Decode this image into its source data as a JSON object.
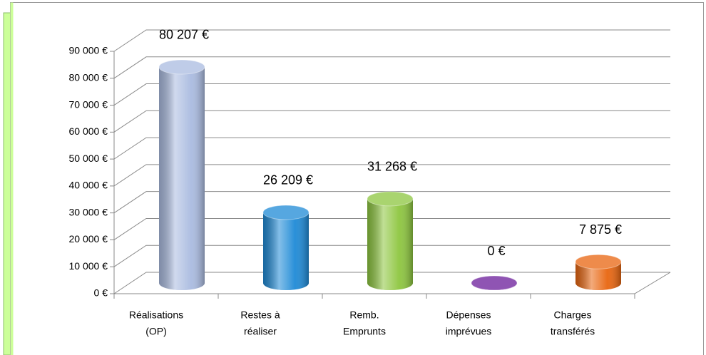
{
  "chart_data": {
    "type": "bar3d",
    "categories": [
      [
        "Réalisations",
        "(OP)"
      ],
      [
        "Restes à",
        "réaliser"
      ],
      [
        "Remb.",
        "Emprunts"
      ],
      [
        "Dépenses",
        "imprévues"
      ],
      [
        "Charges",
        "transférés"
      ]
    ],
    "values": [
      80207,
      26209,
      31268,
      0,
      7875
    ],
    "value_labels": [
      "80 207 €",
      "26 209 €",
      "31 268 €",
      "0 €",
      "7 875 €"
    ],
    "colors": [
      "#aabbe0",
      "#1e8ad6",
      "#8dc63f",
      "#6a1b9a",
      "#e8650f"
    ],
    "ylim": [
      0,
      90000
    ],
    "yticks": [
      {
        "value": 0,
        "label": "0 €"
      },
      {
        "value": 10000,
        "label": "10 000 €"
      },
      {
        "value": 20000,
        "label": "20 000 €"
      },
      {
        "value": 30000,
        "label": "30 000 €"
      },
      {
        "value": 40000,
        "label": "40 000 €"
      },
      {
        "value": 50000,
        "label": "50 000 €"
      },
      {
        "value": 60000,
        "label": "60 000 €"
      },
      {
        "value": 70000,
        "label": "70 000 €"
      },
      {
        "value": 80000,
        "label": "80 000 €"
      },
      {
        "value": 90000,
        "label": "90 000 €"
      }
    ],
    "grid": true
  }
}
